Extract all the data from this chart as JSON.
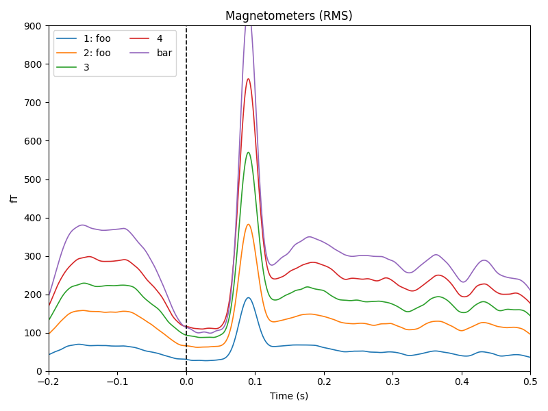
{
  "title": "Magnetometers (RMS)",
  "xlabel": "Time (s)",
  "ylabel": "fT",
  "xlim": [
    -0.2,
    0.5
  ],
  "ylim": [
    0,
    900
  ],
  "vline_x": 0.0,
  "figsize": [
    8.0,
    6.0
  ],
  "dpi": 100,
  "lines": [
    {
      "label": "1: foo",
      "color": "#1f77b4"
    },
    {
      "label": "2: foo",
      "color": "#ff7f0e"
    },
    {
      "label": "3",
      "color": "#2ca02c"
    },
    {
      "label": "4",
      "color": "#d62728"
    },
    {
      "label": "bar",
      "color": "#9467bd"
    }
  ],
  "legend_ncol": 2,
  "legend_loc": "upper left",
  "legend_fontsize": 10,
  "title_fontsize": 12,
  "axis_fontsize": 10,
  "seed": 12345
}
